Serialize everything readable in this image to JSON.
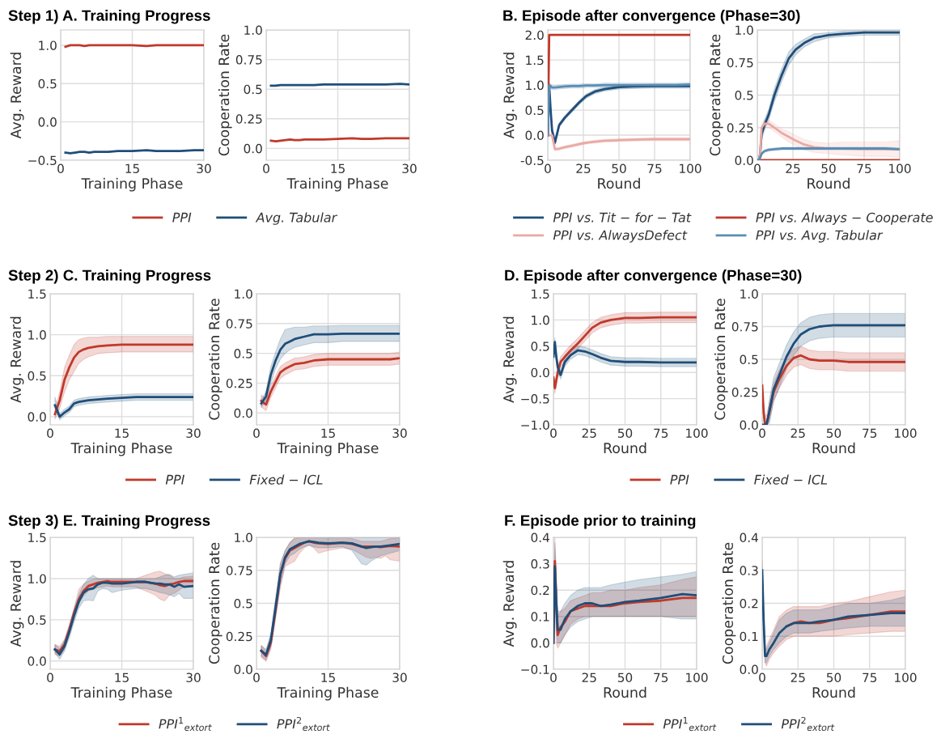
{
  "chart_data": [
    {
      "type": "line",
      "title": "Step 1) A. Training Progress",
      "xlabel": "Training Phase",
      "ylabel": "Avg. Reward",
      "legend": "bottom",
      "grid": true,
      "xlim": [
        0,
        30
      ],
      "xticks": [
        0,
        15,
        30
      ],
      "ylim": [
        -0.5,
        1.2
      ],
      "yticks": [
        {
          "value": -0.5,
          "label": "−0.5"
        },
        {
          "value": 0,
          "label": "0.0"
        },
        0.5,
        {
          "value": 1,
          "label": "1.0"
        }
      ],
      "x": [
        1,
        2,
        3,
        4,
        5,
        6,
        7,
        8,
        10,
        12,
        15,
        18,
        20,
        22,
        25,
        28,
        30
      ],
      "series": [
        {
          "name": "PPI",
          "color": "#c0392b",
          "values": [
            0.98,
            1.0,
            1.0,
            1.0,
            0.99,
            1.0,
            1.0,
            1.0,
            1.0,
            1.0,
            1.0,
            0.99,
            1.0,
            1.0,
            1.0,
            1.0,
            1.0
          ]
        },
        {
          "name": "Avg. Tabular",
          "color": "#1f4e79",
          "values": [
            -0.4,
            -0.41,
            -0.4,
            -0.39,
            -0.39,
            -0.4,
            -0.39,
            -0.39,
            -0.39,
            -0.38,
            -0.38,
            -0.37,
            -0.38,
            -0.38,
            -0.38,
            -0.37,
            -0.37
          ]
        }
      ]
    },
    {
      "type": "line",
      "xlabel": "Training Phase",
      "ylabel": "Cooperation Rate",
      "grid": true,
      "xlim": [
        0,
        30
      ],
      "xticks": [
        0,
        15,
        30
      ],
      "ylim": [
        -0.1,
        1.0
      ],
      "yticks": [
        {
          "value": 0,
          "label": "0.0"
        },
        0.25,
        0.5,
        0.75,
        {
          "value": 1,
          "label": "1.0"
        }
      ],
      "x": [
        1,
        2,
        3,
        4,
        5,
        6,
        7,
        8,
        10,
        12,
        15,
        18,
        20,
        22,
        25,
        28,
        30
      ],
      "series": [
        {
          "color": "#c0392b",
          "values": [
            0.065,
            0.06,
            0.065,
            0.07,
            0.075,
            0.07,
            0.07,
            0.075,
            0.075,
            0.075,
            0.08,
            0.085,
            0.08,
            0.08,
            0.085,
            0.085,
            0.085
          ]
        },
        {
          "color": "#1f4e79",
          "values": [
            0.53,
            0.53,
            0.535,
            0.535,
            0.535,
            0.535,
            0.535,
            0.535,
            0.535,
            0.54,
            0.54,
            0.54,
            0.54,
            0.54,
            0.54,
            0.545,
            0.54
          ]
        }
      ]
    },
    {
      "type": "line",
      "title": "B. Episode after convergence (Phase=30)",
      "xlabel": "Round",
      "ylabel": "Avg. Reward",
      "legend": "bottom",
      "grid": true,
      "xlim": [
        0,
        100
      ],
      "xticks": [
        0,
        25,
        50,
        75,
        100
      ],
      "ylim": [
        -0.5,
        2.1
      ],
      "yticks": [
        -0.5,
        {
          "value": 0,
          "label": "0.0"
        },
        0.5,
        {
          "value": 1,
          "label": "1.0"
        },
        1.5,
        {
          "value": 2,
          "label": "2.0"
        }
      ],
      "x": [
        0,
        1,
        2,
        3,
        5,
        8,
        12,
        17,
        22,
        27,
        33,
        40,
        50,
        60,
        75,
        90,
        100
      ],
      "series": [
        {
          "name": "PPI vs. Tit − for − Tat",
          "color": "#1f4e79",
          "values": [
            0.0,
            1.0,
            0.5,
            0.1,
            -0.15,
            0.2,
            0.35,
            0.5,
            0.65,
            0.78,
            0.87,
            0.92,
            0.96,
            0.97,
            0.98,
            0.98,
            0.98
          ],
          "lower": [
            0.0,
            0.96,
            0.46,
            0.06,
            -0.19,
            0.16,
            0.31,
            0.46,
            0.61,
            0.74,
            0.83,
            0.88,
            0.92,
            0.93,
            0.94,
            0.94,
            0.94
          ],
          "upper": [
            0.0,
            1.04,
            0.54,
            0.14,
            -0.11,
            0.24,
            0.39,
            0.54,
            0.69,
            0.82,
            0.91,
            0.96,
            1.0,
            1.01,
            1.02,
            1.02,
            1.02
          ]
        },
        {
          "name": "PPI vs. AlwaysDefect",
          "color": "#eaa9a4",
          "values": [
            0.0,
            0.0,
            0.0,
            0.0,
            -0.28,
            -0.27,
            -0.24,
            -0.21,
            -0.18,
            -0.15,
            -0.13,
            -0.11,
            -0.1,
            -0.09,
            -0.08,
            -0.08,
            -0.08
          ],
          "lower": [
            0.0,
            0.0,
            0.0,
            0.0,
            -0.31,
            -0.3,
            -0.27,
            -0.24,
            -0.21,
            -0.18,
            -0.16,
            -0.14,
            -0.13,
            -0.12,
            -0.11,
            -0.11,
            -0.11
          ],
          "upper": [
            0.0,
            0.0,
            0.0,
            0.0,
            -0.25,
            -0.24,
            -0.21,
            -0.18,
            -0.15,
            -0.12,
            -0.1,
            -0.08,
            -0.07,
            -0.06,
            -0.05,
            -0.05,
            -0.05
          ]
        },
        {
          "name": "PPI vs. Always − Cooperate",
          "color": "#c0392b",
          "values": [
            0.0,
            2.0,
            2.0,
            2.0,
            2.0,
            2.0,
            2.0,
            2.0,
            2.0,
            2.0,
            2.0,
            2.0,
            2.0,
            2.0,
            2.0,
            2.0,
            2.0
          ]
        },
        {
          "name": "PPI vs. Avg. Tabular",
          "color": "#5b8db3",
          "values": [
            0.0,
            1.0,
            0.98,
            0.95,
            0.95,
            0.96,
            0.97,
            0.98,
            0.98,
            0.99,
            0.99,
            1.0,
            1.0,
            1.0,
            1.0,
            1.0,
            1.01
          ],
          "lower": [
            0.0,
            0.96,
            0.94,
            0.91,
            0.91,
            0.92,
            0.93,
            0.94,
            0.94,
            0.95,
            0.95,
            0.96,
            0.96,
            0.96,
            0.96,
            0.96,
            0.97
          ],
          "upper": [
            0.0,
            1.04,
            1.02,
            0.99,
            0.99,
            1.0,
            1.01,
            1.02,
            1.02,
            1.03,
            1.03,
            1.04,
            1.04,
            1.04,
            1.04,
            1.04,
            1.05
          ]
        }
      ]
    },
    {
      "type": "line",
      "xlabel": "Round",
      "ylabel": "Cooperation Rate",
      "grid": true,
      "xlim": [
        0,
        100
      ],
      "xticks": [
        0,
        25,
        50,
        75,
        100
      ],
      "ylim": [
        0.0,
        1.0
      ],
      "yticks": [
        {
          "value": 0,
          "label": "0.0"
        },
        0.25,
        0.5,
        0.75,
        {
          "value": 1,
          "label": "1.0"
        }
      ],
      "x": [
        0,
        1,
        2,
        3,
        5,
        8,
        12,
        17,
        22,
        27,
        33,
        40,
        50,
        60,
        75,
        90,
        100
      ],
      "series": [
        {
          "color": "#1f4e79",
          "values": [
            0.0,
            0.0,
            0.05,
            0.2,
            0.27,
            0.35,
            0.5,
            0.65,
            0.78,
            0.85,
            0.9,
            0.94,
            0.96,
            0.97,
            0.98,
            0.98,
            0.98
          ],
          "lower": [
            0.0,
            0.0,
            0.02,
            0.16,
            0.23,
            0.31,
            0.45,
            0.6,
            0.73,
            0.81,
            0.87,
            0.91,
            0.94,
            0.95,
            0.96,
            0.96,
            0.96
          ],
          "upper": [
            0.0,
            0.0,
            0.08,
            0.24,
            0.31,
            0.39,
            0.55,
            0.7,
            0.83,
            0.89,
            0.93,
            0.97,
            0.98,
            0.99,
            1.0,
            1.0,
            1.0
          ]
        },
        {
          "color": "#eaa9a4",
          "values": [
            0.0,
            0.0,
            0.05,
            0.25,
            0.28,
            0.28,
            0.25,
            0.21,
            0.18,
            0.15,
            0.12,
            0.1,
            0.09,
            0.09,
            0.085,
            0.085,
            0.085
          ],
          "lower": [
            0.0,
            0.0,
            0.02,
            0.22,
            0.25,
            0.25,
            0.22,
            0.18,
            0.14,
            0.11,
            0.08,
            0.06,
            0.05,
            0.04,
            0.03,
            0.03,
            0.02
          ],
          "upper": [
            0.0,
            0.0,
            0.08,
            0.28,
            0.31,
            0.31,
            0.28,
            0.24,
            0.22,
            0.19,
            0.16,
            0.14,
            0.13,
            0.14,
            0.14,
            0.14,
            0.15
          ]
        },
        {
          "color": "#c0392b",
          "values": [
            0.0,
            0.0,
            0.0,
            0.0,
            0.0,
            0.0,
            0.0,
            0.0,
            0.0,
            0.0,
            0.0,
            0.0,
            0.0,
            0.0,
            0.0,
            0.0,
            0.0
          ]
        },
        {
          "color": "#5b8db3",
          "values": [
            0.0,
            0.0,
            0.02,
            0.05,
            0.07,
            0.08,
            0.085,
            0.09,
            0.09,
            0.09,
            0.09,
            0.09,
            0.09,
            0.09,
            0.09,
            0.09,
            0.085
          ],
          "lower": [
            0.0,
            0.0,
            0.01,
            0.04,
            0.06,
            0.07,
            0.075,
            0.08,
            0.08,
            0.08,
            0.08,
            0.08,
            0.08,
            0.08,
            0.08,
            0.08,
            0.075
          ],
          "upper": [
            0.0,
            0.0,
            0.03,
            0.06,
            0.08,
            0.09,
            0.095,
            0.1,
            0.1,
            0.1,
            0.1,
            0.1,
            0.1,
            0.1,
            0.1,
            0.1,
            0.095
          ]
        }
      ]
    },
    {
      "type": "line",
      "title": "Step 2) C. Training Progress",
      "xlabel": "Training Phase",
      "ylabel": "Avg. Reward",
      "legend": "bottom",
      "grid": true,
      "xlim": [
        0,
        30
      ],
      "xticks": [
        0,
        15,
        30
      ],
      "ylim": [
        -0.1,
        1.5
      ],
      "yticks": [
        {
          "value": 0,
          "label": "0.0"
        },
        0.5,
        {
          "value": 1,
          "label": "1.0"
        },
        1.5
      ],
      "x": [
        1,
        2,
        3,
        4,
        5,
        6,
        7,
        8,
        10,
        12,
        15,
        18,
        20,
        22,
        25,
        28,
        30
      ],
      "series": [
        {
          "name": "PPI",
          "color": "#c0392b",
          "values": [
            0.03,
            0.2,
            0.45,
            0.6,
            0.72,
            0.79,
            0.82,
            0.84,
            0.86,
            0.87,
            0.88,
            0.88,
            0.88,
            0.88,
            0.88,
            0.88,
            0.88
          ],
          "lower": [
            -0.03,
            0.1,
            0.3,
            0.45,
            0.55,
            0.65,
            0.7,
            0.73,
            0.77,
            0.78,
            0.79,
            0.79,
            0.79,
            0.79,
            0.79,
            0.79,
            0.79
          ],
          "upper": [
            0.08,
            0.3,
            0.6,
            0.75,
            0.88,
            0.94,
            0.96,
            0.97,
            0.97,
            0.98,
            0.98,
            0.98,
            0.98,
            0.98,
            0.98,
            0.98,
            0.98
          ]
        },
        {
          "name": "Fixed − ICL",
          "color": "#1f4e79",
          "values": [
            0.14,
            0.0,
            0.05,
            0.09,
            0.16,
            0.18,
            0.19,
            0.2,
            0.21,
            0.22,
            0.23,
            0.24,
            0.24,
            0.24,
            0.24,
            0.24,
            0.24
          ],
          "lower": [
            0.1,
            -0.04,
            0.01,
            0.05,
            0.12,
            0.14,
            0.15,
            0.16,
            0.17,
            0.18,
            0.19,
            0.2,
            0.2,
            0.2,
            0.2,
            0.2,
            0.2
          ],
          "upper": [
            0.24,
            0.04,
            0.09,
            0.13,
            0.2,
            0.22,
            0.23,
            0.24,
            0.25,
            0.26,
            0.27,
            0.28,
            0.28,
            0.28,
            0.28,
            0.28,
            0.28
          ]
        }
      ]
    },
    {
      "type": "line",
      "xlabel": "Training Phase",
      "ylabel": "Cooperation Rate",
      "grid": true,
      "xlim": [
        0,
        30
      ],
      "xticks": [
        0,
        15,
        30
      ],
      "ylim": [
        -0.1,
        1.0
      ],
      "yticks": [
        {
          "value": 0,
          "label": "0.0"
        },
        0.25,
        0.5,
        0.75,
        {
          "value": 1,
          "label": "1.0"
        }
      ],
      "x": [
        1,
        2,
        3,
        4,
        5,
        6,
        7,
        8,
        10,
        12,
        15,
        18,
        20,
        22,
        25,
        28,
        30
      ],
      "series": [
        {
          "color": "#c0392b",
          "values": [
            0.1,
            0.07,
            0.18,
            0.26,
            0.34,
            0.37,
            0.39,
            0.41,
            0.42,
            0.44,
            0.45,
            0.45,
            0.45,
            0.45,
            0.45,
            0.45,
            0.46
          ],
          "lower": [
            0.05,
            0.02,
            0.13,
            0.21,
            0.29,
            0.32,
            0.34,
            0.36,
            0.37,
            0.39,
            0.4,
            0.4,
            0.4,
            0.4,
            0.4,
            0.4,
            0.41
          ],
          "upper": [
            0.15,
            0.12,
            0.23,
            0.31,
            0.39,
            0.42,
            0.44,
            0.46,
            0.47,
            0.49,
            0.5,
            0.5,
            0.5,
            0.5,
            0.5,
            0.5,
            0.51
          ]
        },
        {
          "color": "#1f4e79",
          "values": [
            0.08,
            0.14,
            0.32,
            0.44,
            0.53,
            0.58,
            0.6,
            0.62,
            0.64,
            0.66,
            0.66,
            0.665,
            0.665,
            0.665,
            0.665,
            0.665,
            0.665
          ],
          "lower": [
            0.05,
            0.1,
            0.25,
            0.37,
            0.45,
            0.5,
            0.53,
            0.55,
            0.57,
            0.59,
            0.59,
            0.6,
            0.6,
            0.6,
            0.6,
            0.6,
            0.6
          ],
          "upper": [
            0.11,
            0.18,
            0.39,
            0.51,
            0.62,
            0.7,
            0.71,
            0.72,
            0.72,
            0.73,
            0.73,
            0.735,
            0.735,
            0.735,
            0.735,
            0.735,
            0.735
          ]
        }
      ]
    },
    {
      "type": "line",
      "title": "D. Episode after convergence (Phase=30)",
      "xlabel": "Round",
      "ylabel": "Avg. Reward",
      "legend": "bottom",
      "grid": true,
      "xlim": [
        0,
        100
      ],
      "xticks": [
        0,
        25,
        50,
        75,
        100
      ],
      "ylim": [
        -1.0,
        1.5
      ],
      "yticks": [
        {
          "value": -1,
          "label": "−1.0"
        },
        {
          "value": -0.5,
          "label": "−0.5"
        },
        {
          "value": 0,
          "label": "0.0"
        },
        0.5,
        {
          "value": 1,
          "label": "1.0"
        },
        1.5
      ],
      "x": [
        0,
        1,
        2,
        3,
        5,
        8,
        12,
        17,
        22,
        27,
        33,
        40,
        50,
        60,
        75,
        90,
        100
      ],
      "series": [
        {
          "name": "PPI",
          "color": "#c0392b",
          "values": [
            -0.1,
            -0.3,
            -0.15,
            0.0,
            0.2,
            0.3,
            0.42,
            0.55,
            0.7,
            0.85,
            0.95,
            1.0,
            1.04,
            1.04,
            1.05,
            1.05,
            1.05
          ],
          "lower": [
            -0.2,
            -0.4,
            -0.25,
            -0.1,
            0.1,
            0.2,
            0.32,
            0.45,
            0.6,
            0.75,
            0.85,
            0.9,
            0.94,
            0.94,
            0.95,
            0.95,
            0.95
          ],
          "upper": [
            0.0,
            -0.2,
            -0.05,
            0.1,
            0.3,
            0.4,
            0.52,
            0.65,
            0.8,
            0.95,
            1.05,
            1.1,
            1.14,
            1.14,
            1.15,
            1.15,
            1.15
          ]
        },
        {
          "name": "Fixed − ICL",
          "color": "#1f4e79",
          "values": [
            0.3,
            0.58,
            0.3,
            0.1,
            -0.05,
            0.2,
            0.33,
            0.42,
            0.4,
            0.35,
            0.28,
            0.22,
            0.2,
            0.2,
            0.19,
            0.19,
            0.19
          ],
          "lower": [
            0.22,
            0.5,
            0.22,
            0.02,
            -0.13,
            0.12,
            0.25,
            0.34,
            0.32,
            0.27,
            0.2,
            0.14,
            0.12,
            0.12,
            0.11,
            0.11,
            0.11
          ],
          "upper": [
            0.38,
            0.66,
            0.38,
            0.18,
            0.03,
            0.28,
            0.41,
            0.5,
            0.48,
            0.43,
            0.36,
            0.3,
            0.28,
            0.28,
            0.27,
            0.27,
            0.27
          ]
        }
      ]
    },
    {
      "type": "line",
      "xlabel": "Round",
      "ylabel": "Cooperation Rate",
      "grid": true,
      "xlim": [
        0,
        100
      ],
      "xticks": [
        0,
        25,
        50,
        75,
        100
      ],
      "ylim": [
        0.0,
        1.0
      ],
      "yticks": [
        {
          "value": 0,
          "label": "0.0"
        },
        0.25,
        0.5,
        0.75,
        {
          "value": 1,
          "label": "1.0"
        }
      ],
      "x": [
        0,
        1,
        2,
        3,
        5,
        8,
        12,
        17,
        22,
        27,
        33,
        40,
        50,
        60,
        75,
        90,
        100
      ],
      "series": [
        {
          "color": "#c0392b",
          "values": [
            0.3,
            0.1,
            0.0,
            0.0,
            0.1,
            0.25,
            0.35,
            0.45,
            0.51,
            0.53,
            0.5,
            0.49,
            0.49,
            0.48,
            0.48,
            0.48,
            0.48
          ],
          "lower": [
            0.23,
            0.03,
            0.0,
            0.0,
            0.03,
            0.18,
            0.28,
            0.38,
            0.44,
            0.46,
            0.43,
            0.42,
            0.42,
            0.41,
            0.41,
            0.41,
            0.41
          ],
          "upper": [
            0.37,
            0.17,
            0.07,
            0.07,
            0.17,
            0.32,
            0.42,
            0.52,
            0.58,
            0.6,
            0.57,
            0.56,
            0.56,
            0.55,
            0.55,
            0.55,
            0.55
          ]
        },
        {
          "color": "#1f4e79",
          "values": [
            0.0,
            0.0,
            0.0,
            0.0,
            0.1,
            0.27,
            0.38,
            0.52,
            0.62,
            0.69,
            0.73,
            0.75,
            0.76,
            0.76,
            0.76,
            0.76,
            0.76
          ],
          "lower": [
            0.0,
            0.0,
            0.0,
            0.0,
            0.01,
            0.18,
            0.29,
            0.43,
            0.53,
            0.6,
            0.64,
            0.66,
            0.67,
            0.67,
            0.67,
            0.67,
            0.67
          ],
          "upper": [
            0.0,
            0.0,
            0.0,
            0.0,
            0.19,
            0.36,
            0.47,
            0.61,
            0.71,
            0.78,
            0.82,
            0.84,
            0.85,
            0.85,
            0.85,
            0.85,
            0.85
          ]
        }
      ]
    },
    {
      "type": "line",
      "title": "Step 3) E. Training Progress",
      "xlabel": "Training Phase",
      "ylabel": "Avg. Reward",
      "legend": "bottom",
      "grid": true,
      "xlim": [
        0,
        30
      ],
      "xticks": [
        0,
        15,
        30
      ],
      "ylim": [
        -0.1,
        1.5
      ],
      "yticks": [
        {
          "value": 0,
          "label": "0.0"
        },
        0.5,
        {
          "value": 1,
          "label": "1.0"
        },
        1.5
      ],
      "x": [
        1,
        2,
        3,
        4,
        5,
        6,
        7,
        8,
        9,
        10,
        11,
        12,
        13,
        15,
        18,
        20,
        22,
        23,
        24,
        25,
        26,
        27,
        28,
        30
      ],
      "series": [
        {
          "name": "PPI$^{1}$$_{extort}$",
          "color": "#c0392b",
          "values": [
            0.14,
            0.12,
            0.2,
            0.38,
            0.58,
            0.75,
            0.85,
            0.91,
            0.93,
            0.95,
            0.96,
            0.97,
            0.96,
            0.96,
            0.96,
            0.96,
            0.94,
            0.92,
            0.91,
            0.93,
            0.94,
            0.96,
            0.97,
            0.97
          ],
          "lower": [
            0.08,
            0.06,
            0.14,
            0.32,
            0.52,
            0.69,
            0.79,
            0.85,
            0.87,
            0.89,
            0.9,
            0.91,
            0.9,
            0.9,
            0.9,
            0.85,
            0.8,
            0.75,
            0.73,
            0.8,
            0.82,
            0.86,
            0.9,
            0.9
          ],
          "upper": [
            0.2,
            0.18,
            0.26,
            0.44,
            0.64,
            0.87,
            0.93,
            0.97,
            0.99,
            1.0,
            1.0,
            1.0,
            1.0,
            1.0,
            1.0,
            1.04,
            1.08,
            1.09,
            1.06,
            1.04,
            1.0,
            1.0,
            1.02,
            1.03
          ]
        },
        {
          "name": "PPI$^{2}$$_{extort}$",
          "color": "#1f4e79",
          "values": [
            0.14,
            0.08,
            0.18,
            0.35,
            0.55,
            0.72,
            0.83,
            0.87,
            0.88,
            0.93,
            0.95,
            0.95,
            0.94,
            0.94,
            0.96,
            0.96,
            0.94,
            0.94,
            0.93,
            0.93,
            0.9,
            0.93,
            0.9,
            0.91
          ],
          "lower": [
            0.1,
            0.02,
            0.12,
            0.28,
            0.47,
            0.64,
            0.73,
            0.74,
            0.73,
            0.85,
            0.88,
            0.87,
            0.83,
            0.86,
            0.88,
            0.88,
            0.85,
            0.83,
            0.82,
            0.8,
            0.78,
            0.82,
            0.76,
            0.76
          ],
          "upper": [
            0.2,
            0.15,
            0.25,
            0.42,
            0.63,
            0.8,
            0.93,
            1.0,
            1.04,
            1.0,
            1.0,
            1.0,
            1.0,
            1.0,
            1.0,
            1.0,
            1.0,
            1.02,
            1.04,
            1.05,
            1.02,
            1.04,
            1.05,
            1.07
          ]
        }
      ]
    },
    {
      "type": "line",
      "xlabel": "Training Phase",
      "ylabel": "Cooperation Rate",
      "grid": true,
      "xlim": [
        0,
        30
      ],
      "xticks": [
        0,
        15,
        30
      ],
      "ylim": [
        0.0,
        1.0
      ],
      "yticks": [
        {
          "value": 0,
          "label": "0.0"
        },
        0.25,
        0.5,
        0.75,
        {
          "value": 1,
          "label": "1.0"
        }
      ],
      "x": [
        1,
        2,
        3,
        4,
        5,
        6,
        7,
        8,
        9,
        10,
        11,
        12,
        13,
        15,
        18,
        20,
        22,
        23,
        24,
        25,
        26,
        27,
        28,
        30
      ],
      "series": [
        {
          "color": "#c0392b",
          "values": [
            0.14,
            0.1,
            0.2,
            0.45,
            0.72,
            0.84,
            0.9,
            0.92,
            0.94,
            0.96,
            0.97,
            0.96,
            0.955,
            0.95,
            0.96,
            0.95,
            0.93,
            0.93,
            0.93,
            0.93,
            0.925,
            0.93,
            0.935,
            0.93
          ],
          "lower": [
            0.09,
            0.06,
            0.15,
            0.38,
            0.62,
            0.78,
            0.8,
            0.82,
            0.88,
            0.92,
            0.94,
            0.92,
            0.88,
            0.9,
            0.92,
            0.91,
            0.87,
            0.85,
            0.84,
            0.85,
            0.84,
            0.86,
            0.83,
            0.82
          ],
          "upper": [
            0.18,
            0.14,
            0.25,
            0.52,
            0.8,
            0.9,
            0.96,
            1.0,
            1.0,
            1.0,
            1.0,
            1.0,
            1.0,
            1.0,
            1.0,
            0.99,
            0.97,
            0.97,
            0.97,
            0.97,
            0.97,
            0.98,
            0.99,
            1.0
          ]
        },
        {
          "color": "#1f4e79",
          "values": [
            0.14,
            0.11,
            0.22,
            0.47,
            0.72,
            0.85,
            0.91,
            0.93,
            0.95,
            0.96,
            0.97,
            0.965,
            0.96,
            0.955,
            0.96,
            0.955,
            0.93,
            0.92,
            0.925,
            0.93,
            0.93,
            0.935,
            0.94,
            0.95
          ],
          "lower": [
            0.1,
            0.07,
            0.17,
            0.4,
            0.64,
            0.8,
            0.86,
            0.88,
            0.91,
            0.93,
            0.94,
            0.93,
            0.92,
            0.92,
            0.93,
            0.9,
            0.8,
            0.79,
            0.82,
            0.84,
            0.86,
            0.87,
            0.88,
            0.9
          ],
          "upper": [
            0.18,
            0.15,
            0.27,
            0.54,
            0.8,
            0.9,
            0.96,
            0.99,
            1.0,
            1.0,
            1.0,
            1.0,
            1.0,
            1.0,
            1.0,
            1.0,
            1.0,
            1.0,
            1.0,
            1.0,
            1.0,
            1.0,
            1.0,
            1.0
          ]
        }
      ]
    },
    {
      "type": "line",
      "title": "F. Episode prior to training",
      "xlabel": "Round",
      "ylabel": "Avg. Reward",
      "legend": "bottom",
      "grid": true,
      "xlim": [
        0,
        100
      ],
      "xticks": [
        0,
        25,
        50,
        75,
        100
      ],
      "ylim": [
        -0.1,
        0.4
      ],
      "yticks": [
        {
          "value": -0.1,
          "label": "−0.1"
        },
        {
          "value": 0,
          "label": "0.0"
        },
        0.1,
        0.2,
        0.3,
        0.4
      ],
      "x": [
        0,
        1,
        2,
        3,
        5,
        8,
        12,
        17,
        22,
        27,
        33,
        40,
        50,
        60,
        75,
        90,
        100
      ],
      "series": [
        {
          "name": "PPI$^{1}$$_{extort}$",
          "color": "#c0392b",
          "values": [
            0.0,
            0.31,
            0.15,
            0.03,
            0.06,
            0.08,
            0.12,
            0.13,
            0.14,
            0.14,
            0.14,
            0.14,
            0.15,
            0.155,
            0.16,
            0.17,
            0.17
          ],
          "lower": [
            0.0,
            0.2,
            0.0,
            -0.02,
            0.0,
            0.03,
            0.07,
            0.09,
            0.1,
            0.1,
            0.1,
            0.1,
            0.1,
            0.1,
            0.1,
            0.1,
            0.1
          ],
          "upper": [
            0.0,
            0.4,
            0.25,
            0.1,
            0.12,
            0.13,
            0.16,
            0.17,
            0.18,
            0.19,
            0.19,
            0.2,
            0.2,
            0.21,
            0.22,
            0.24,
            0.25
          ]
        },
        {
          "name": "PPI$^{2}$$_{extort}$",
          "color": "#1f4e79",
          "values": [
            0.0,
            0.29,
            0.15,
            0.05,
            0.05,
            0.09,
            0.12,
            0.14,
            0.15,
            0.15,
            0.14,
            0.145,
            0.155,
            0.16,
            0.17,
            0.185,
            0.18
          ],
          "lower": [
            0.0,
            0.2,
            0.05,
            0.0,
            0.0,
            0.03,
            0.06,
            0.08,
            0.09,
            0.1,
            0.1,
            0.1,
            0.1,
            0.1,
            0.1,
            0.09,
            0.09
          ],
          "upper": [
            0.0,
            0.38,
            0.25,
            0.12,
            0.12,
            0.15,
            0.18,
            0.2,
            0.21,
            0.21,
            0.21,
            0.22,
            0.23,
            0.24,
            0.25,
            0.26,
            0.27
          ]
        }
      ]
    },
    {
      "type": "line",
      "xlabel": "Round",
      "ylabel": "Cooperation Rate",
      "grid": true,
      "xlim": [
        0,
        100
      ],
      "xticks": [
        0,
        25,
        50,
        75,
        100
      ],
      "ylim": [
        0.0,
        0.4
      ],
      "yticks": [
        {
          "value": 0,
          "label": "0.0"
        },
        0.1,
        0.2,
        0.3,
        0.4
      ],
      "x": [
        0,
        1,
        2,
        3,
        5,
        8,
        12,
        17,
        22,
        27,
        33,
        40,
        50,
        60,
        75,
        90,
        100
      ],
      "series": [
        {
          "color": "#c0392b",
          "values": [
            null,
            null,
            null,
            null,
            null,
            null,
            null,
            0.13,
            0.14,
            0.145,
            0.14,
            0.14,
            0.15,
            0.155,
            0.165,
            0.175,
            0.175
          ],
          "lower": [
            0.27,
            0.12,
            0.02,
            0.01,
            0.03,
            0.05,
            0.07,
            0.09,
            0.1,
            0.1,
            0.1,
            0.1,
            0.1,
            0.105,
            0.11,
            0.115,
            0.115
          ],
          "upper": [
            0.33,
            0.18,
            0.06,
            0.07,
            0.09,
            0.12,
            0.16,
            0.18,
            0.19,
            0.19,
            0.19,
            0.19,
            0.2,
            0.205,
            0.22,
            0.235,
            0.24
          ]
        },
        {
          "color": "#1f4e79",
          "values": [
            0.3,
            0.15,
            0.04,
            0.04,
            0.06,
            0.08,
            0.11,
            0.13,
            0.14,
            0.14,
            0.14,
            0.145,
            0.15,
            0.16,
            0.165,
            0.17,
            0.17
          ],
          "lower": [
            0.27,
            0.12,
            0.02,
            0.02,
            0.04,
            0.06,
            0.08,
            0.1,
            0.11,
            0.11,
            0.11,
            0.115,
            0.12,
            0.125,
            0.13,
            0.13,
            0.13
          ],
          "upper": [
            0.33,
            0.18,
            0.06,
            0.06,
            0.08,
            0.11,
            0.15,
            0.17,
            0.18,
            0.18,
            0.18,
            0.18,
            0.19,
            0.2,
            0.2,
            0.21,
            0.22
          ]
        }
      ]
    }
  ]
}
